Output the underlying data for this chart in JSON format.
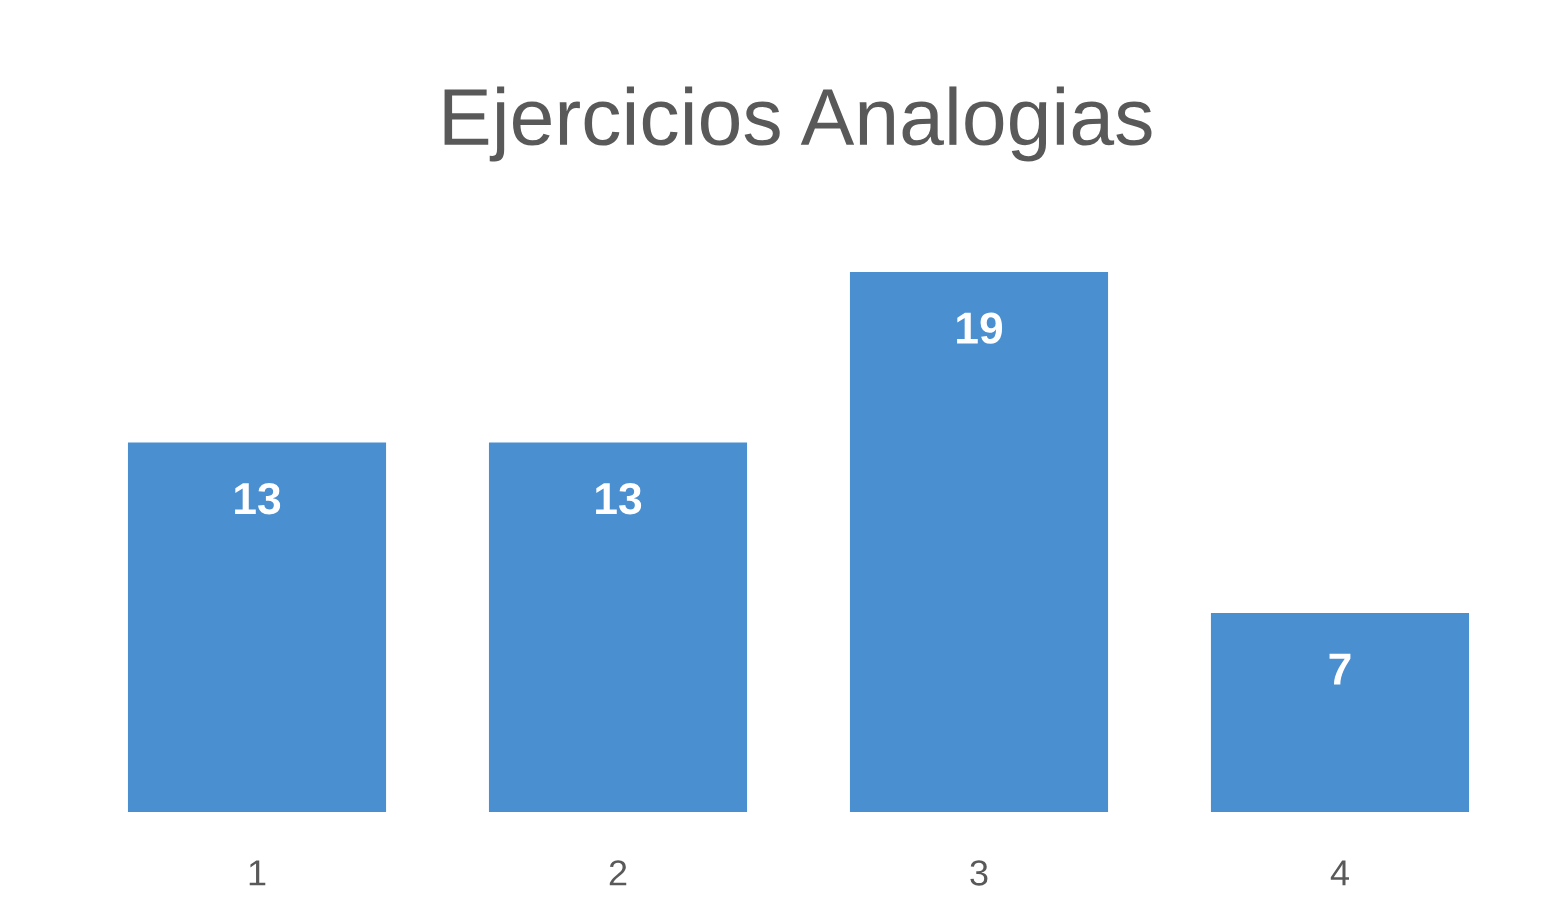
{
  "chart_data": {
    "type": "bar",
    "title": "Ejercicios Analogias",
    "categories": [
      "1",
      "2",
      "3",
      "4"
    ],
    "values": [
      13,
      13,
      19,
      7
    ],
    "color": "#4a8fd0",
    "data_labels": true,
    "grid": false,
    "legend": false
  }
}
